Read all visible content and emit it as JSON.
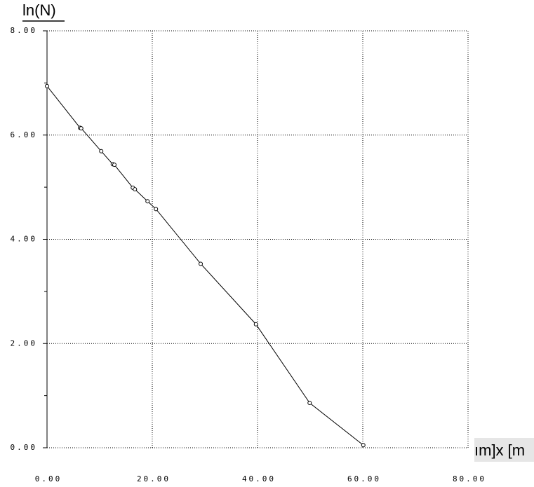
{
  "chart_data": {
    "type": "line",
    "y_label": "ln(N)",
    "x_label": "ım]x [m",
    "x": [
      0,
      6.27,
      6.5,
      10.3,
      12.5,
      12.8,
      16.3,
      16.7,
      19.1,
      20.7,
      29.2,
      39.7,
      49.9,
      60.1
    ],
    "series": [
      {
        "color": "#000000",
        "values": [
          6.94,
          6.14,
          6.13,
          5.69,
          5.44,
          5.43,
          4.99,
          4.96,
          4.73,
          4.58,
          3.53,
          2.37,
          0.86,
          0.05
        ]
      }
    ],
    "xlim": [
      0,
      80
    ],
    "ylim": [
      0,
      8
    ],
    "xticks": [
      {
        "value": 0,
        "label": "0.00"
      },
      {
        "value": 20,
        "label": "20.00"
      },
      {
        "value": 40,
        "label": "40.00"
      },
      {
        "value": 60,
        "label": "60.00"
      },
      {
        "value": 80,
        "label": "80.00"
      }
    ],
    "yticks": [
      {
        "value": 0,
        "label": "0.00"
      },
      {
        "value": 2,
        "label": "2.00"
      },
      {
        "value": 4,
        "label": "4.00"
      },
      {
        "value": 6,
        "label": "6.00"
      },
      {
        "value": 8,
        "label": "8.00"
      }
    ],
    "yminor": [
      1,
      3,
      5,
      7
    ],
    "grid": true,
    "markers": true
  }
}
